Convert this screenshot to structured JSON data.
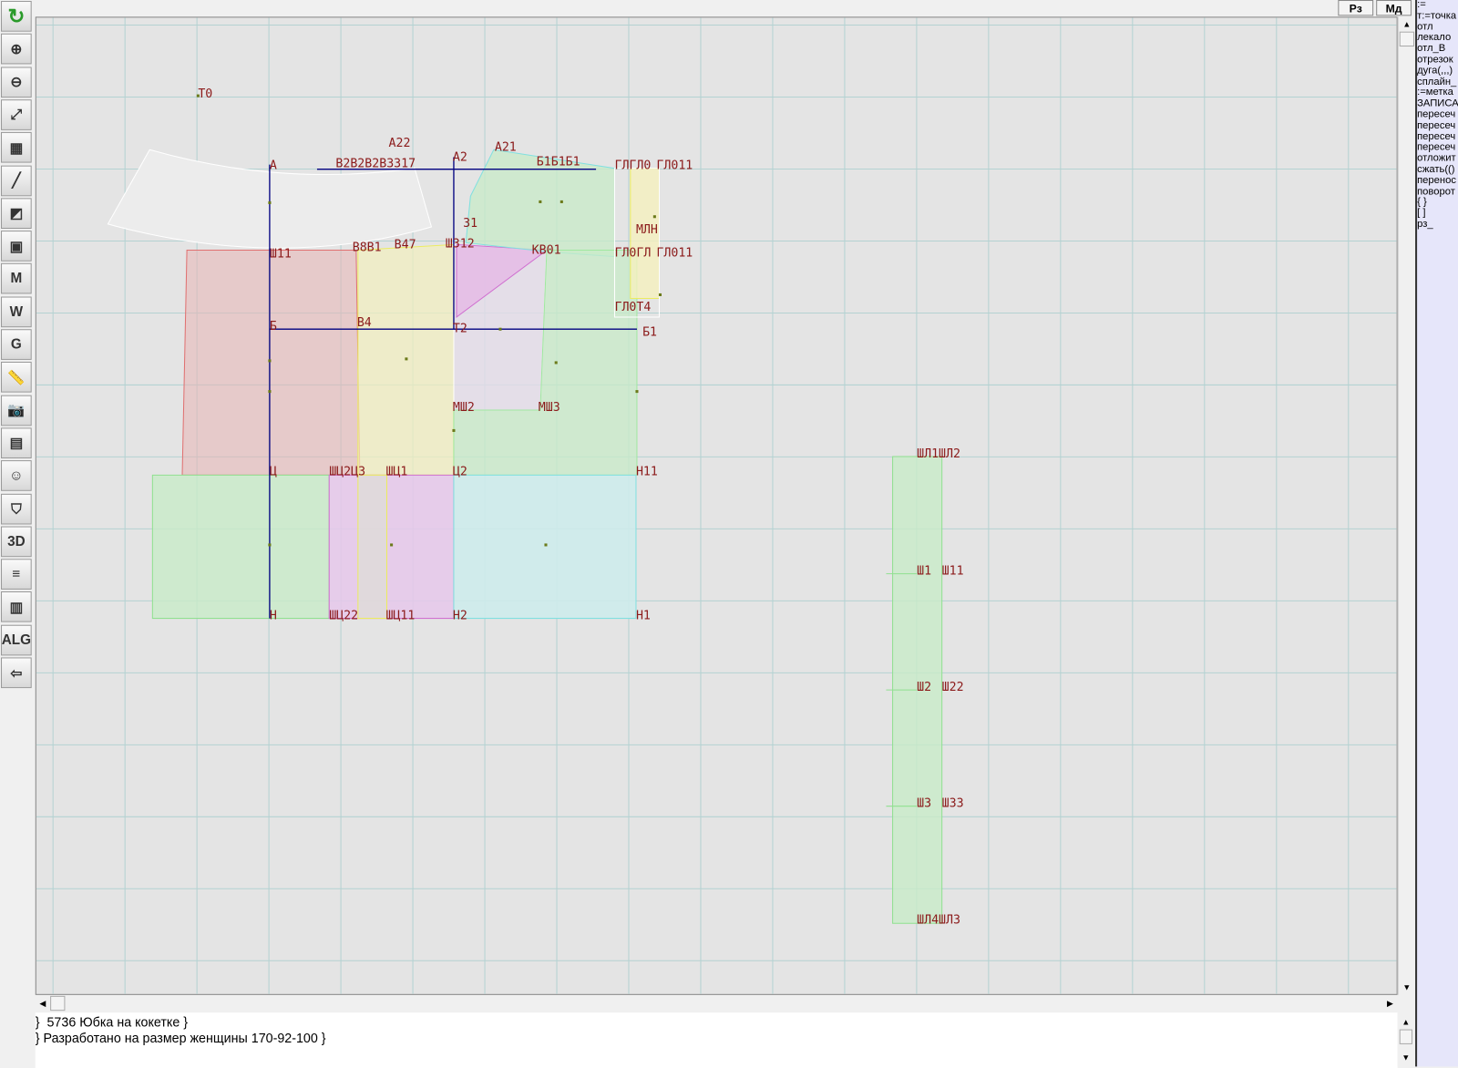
{
  "toolbar": {
    "items": [
      {
        "icon": "refresh-icon",
        "glyph": "↻"
      },
      {
        "icon": "zoom-in-icon",
        "glyph": "⊕"
      },
      {
        "icon": "zoom-out-icon",
        "glyph": "⊖"
      },
      {
        "icon": "fit-view-icon",
        "glyph": "⤢"
      },
      {
        "icon": "grid-icon",
        "glyph": "▦"
      },
      {
        "icon": "line-segment-icon",
        "glyph": "╱"
      },
      {
        "icon": "pattern-map-icon",
        "glyph": "◩"
      },
      {
        "icon": "pattern-piece-icon",
        "glyph": "▣"
      },
      {
        "icon": "measure-m-icon",
        "glyph": "M"
      },
      {
        "icon": "compass-w-icon",
        "glyph": "W"
      },
      {
        "icon": "grading-g-icon",
        "glyph": "G"
      },
      {
        "icon": "ruler-icon",
        "glyph": "📏"
      },
      {
        "icon": "camera-icon",
        "glyph": "📷"
      },
      {
        "icon": "table-icon",
        "glyph": "▤"
      },
      {
        "icon": "woman-avatar-icon",
        "glyph": "☺"
      },
      {
        "icon": "jacket-icon",
        "glyph": "⛉"
      },
      {
        "icon": "3d-icon",
        "glyph": "3D"
      },
      {
        "icon": "document-list-icon",
        "glyph": "≡"
      },
      {
        "icon": "books-icon",
        "glyph": "▥"
      },
      {
        "icon": "alg-icon",
        "glyph": "ALG"
      },
      {
        "icon": "exit-icon",
        "glyph": "⇦"
      }
    ]
  },
  "top_buttons": {
    "rz": "Рз",
    "md": "Мд"
  },
  "command_panel": {
    "items": [
      ":=",
      "т:=точка",
      "отл",
      "лекало",
      "отл_В",
      "отрезок",
      "дуга(,,,)",
      "сплайн_",
      ":=метка",
      "ЗАПИСА",
      "пересеч",
      "пересеч",
      "пересеч",
      "пересеч",
      "отложит",
      "сжать(()",
      "перенос",
      "поворот",
      "{ }",
      "[ ]",
      "рз_"
    ]
  },
  "notes": {
    "line1": "}  5736 Юбка на кокетке }",
    "line2": "} Разработано на размер женщины 170-92-100 }"
  },
  "drawing": {
    "labels": [
      "Т0",
      "А22",
      "А2",
      "А21",
      "А",
      "В2В2В2ВЗЗ17",
      "Б1Б1Б1",
      "ГЛГЛ0",
      "ГЛ011",
      "31",
      "МЛН",
      "Ш11",
      "В8В1",
      "В47",
      "Ш312",
      "КВ01",
      "ГЛ0ГЛ",
      "ГЛ011",
      "ГЛ0Т4",
      "Б",
      "В4",
      "Т2",
      "Б1",
      "МШ2",
      "МШ3",
      "Ц",
      "ШЦ2Ц3",
      "ШЦ1",
      "Ц2",
      "Н11",
      "Н",
      "ШЦ22",
      "ШЦ11",
      "Н2",
      "Н1",
      "ШЛ1ШЛ2",
      "Ш1",
      "Ш11",
      "Ш2",
      "Ш22",
      "Ш3",
      "Ш33",
      "ШЛ4ШЛ3"
    ],
    "colors": {
      "grid": "#b4d2d2",
      "axis": "#000080",
      "label": "#8b1a1a",
      "canvas": "#e4e4e4",
      "panel": "#e6e6fa"
    }
  }
}
